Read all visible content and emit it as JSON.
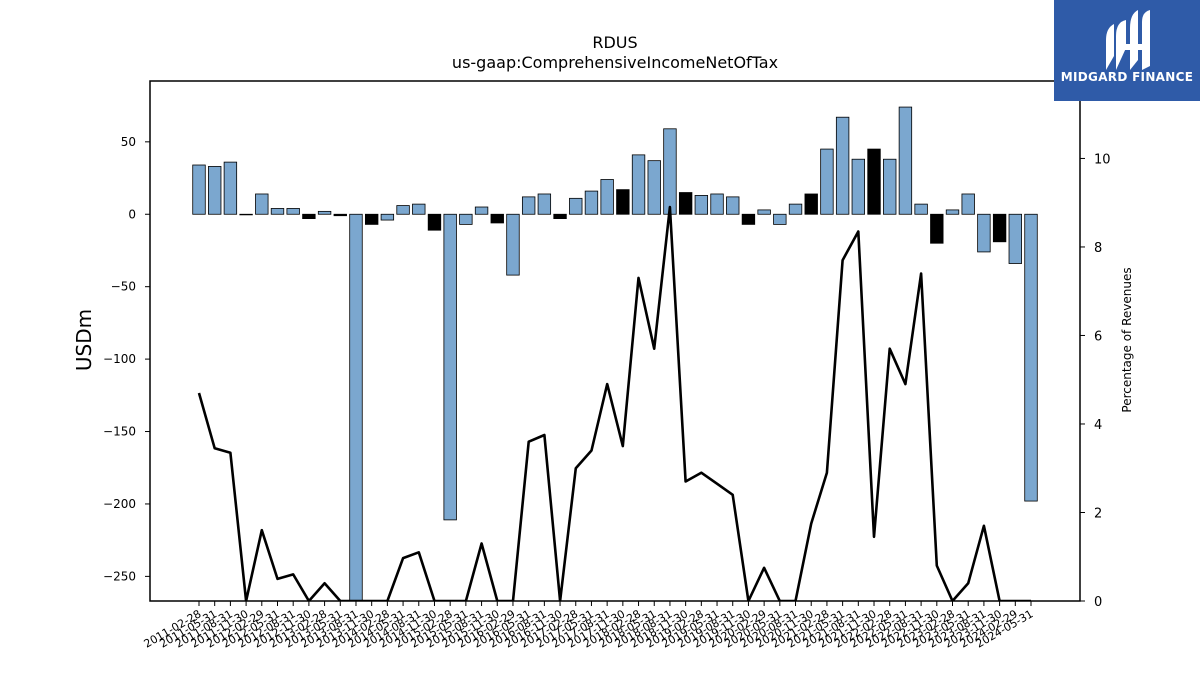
{
  "chart_data": {
    "type": "bar",
    "title": "RDUS",
    "subtitle": "us-gaap:ComprehensiveIncomeNetOfTax",
    "ylabel": "USDm",
    "y2label": "Percentage of Revenues",
    "ylim": [
      -267,
      92
    ],
    "y2lim": [
      0,
      11.75
    ],
    "yticks": [
      50,
      0,
      -50,
      -100,
      -150,
      -200,
      -250
    ],
    "y2ticks": [
      0,
      2,
      4,
      6,
      8,
      10
    ],
    "grid": false,
    "categories": [
      "2011-02-28",
      "2011-05-31",
      "2011-08-31",
      "2011-11-30",
      "2012-02-29",
      "2012-05-31",
      "2012-08-31",
      "2012-11-30",
      "2013-02-28",
      "2013-05-31",
      "2013-08-31",
      "2013-11-30",
      "2014-02-28",
      "2014-05-31",
      "2014-08-31",
      "2014-11-30",
      "2015-02-28",
      "2015-05-31",
      "2015-08-31",
      "2015-11-30",
      "2016-02-29",
      "2016-05-31",
      "2016-08-31",
      "2016-11-30",
      "2017-02-28",
      "2017-05-31",
      "2017-08-31",
      "2017-11-30",
      "2018-02-28",
      "2018-05-31",
      "2018-08-31",
      "2018-11-30",
      "2019-02-28",
      "2019-05-31",
      "2019-08-31",
      "2019-11-30",
      "2020-02-29",
      "2020-05-31",
      "2020-08-31",
      "2020-11-30",
      "2021-02-28",
      "2021-05-31",
      "2021-08-31",
      "2021-11-30",
      "2022-02-28",
      "2022-05-31",
      "2022-08-31",
      "2022-11-30",
      "2023-02-28",
      "2023-05-31",
      "2023-08-31",
      "2023-11-30",
      "2024-02-29",
      "2024-05-31"
    ],
    "series": [
      {
        "values": [
          34,
          33,
          36,
          0,
          14,
          4,
          4,
          -3,
          2,
          -1,
          -270,
          -7,
          -4,
          6,
          7,
          -11,
          -211,
          -7,
          5,
          -6,
          -42,
          12,
          14,
          -3,
          11,
          16,
          24,
          17,
          41,
          37,
          59,
          15,
          13,
          14,
          12,
          -7,
          3,
          -7,
          7,
          14,
          45,
          67,
          38,
          45,
          38,
          74,
          7,
          -20,
          3,
          14,
          -26,
          -19,
          -34,
          -198
        ],
        "highlight": [
          false,
          false,
          false,
          true,
          false,
          false,
          false,
          true,
          false,
          true,
          false,
          true,
          false,
          false,
          false,
          true,
          false,
          false,
          false,
          true,
          false,
          false,
          false,
          true,
          false,
          false,
          false,
          true,
          false,
          false,
          false,
          true,
          false,
          false,
          false,
          true,
          false,
          false,
          false,
          true,
          false,
          false,
          false,
          true,
          false,
          false,
          false,
          true,
          false,
          false,
          false,
          true,
          false,
          false
        ],
        "color": "#7ba7cf",
        "highlight_color": "#000000"
      },
      {
        "name": "Percentage of Revenues",
        "type": "line",
        "axis": "right",
        "color": "#000000",
        "values": [
          4.7,
          3.45,
          3.35,
          0,
          1.6,
          0.5,
          0.6,
          0,
          0.4,
          0,
          0,
          0,
          0,
          0.97,
          1.1,
          0,
          0,
          0,
          1.3,
          0,
          0,
          3.6,
          3.75,
          0,
          3.0,
          3.4,
          4.9,
          3.5,
          7.3,
          5.7,
          8.9,
          2.7,
          2.9,
          2.65,
          2.4,
          0,
          0.75,
          0,
          0,
          1.75,
          2.9,
          7.7,
          8.35,
          1.45,
          5.7,
          4.9,
          7.4,
          0.8,
          0,
          0.4,
          1.7,
          0,
          0,
          0
        ]
      }
    ]
  },
  "logo": {
    "text": "MIDGARD FINANCE"
  }
}
